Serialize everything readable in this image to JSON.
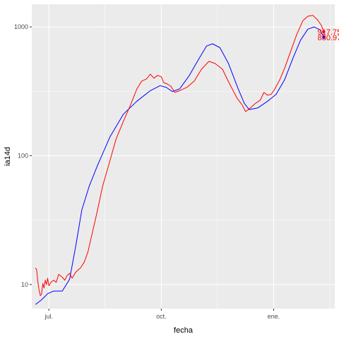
{
  "chart_data": {
    "type": "line",
    "xlabel": "fecha",
    "ylabel": "ia14d",
    "y_scale": "log10",
    "ylim": [
      6.5,
      1500
    ],
    "xlim": [
      "2020-06-17",
      "2021-02-20"
    ],
    "grid": true,
    "legend": "none",
    "x_ticks": [
      {
        "date": "2020-07-01",
        "label": "jul."
      },
      {
        "date": "2020-10-01",
        "label": "oct."
      },
      {
        "date": "2021-01-01",
        "label": "ene."
      }
    ],
    "y_ticks": [
      {
        "value": 10,
        "label": "10"
      },
      {
        "value": 100,
        "label": "100"
      },
      {
        "value": 1000,
        "label": "1000"
      }
    ],
    "series": [
      {
        "color": "#0000ff",
        "end_label": "830.97",
        "points": [
          [
            "2020-06-20",
            7.0
          ],
          [
            "2020-06-25",
            7.6
          ],
          [
            "2020-06-30",
            8.5
          ],
          [
            "2020-07-05",
            8.9
          ],
          [
            "2020-07-12",
            8.9
          ],
          [
            "2020-07-18",
            11.0
          ],
          [
            "2020-07-23",
            20.0
          ],
          [
            "2020-07-28",
            38.0
          ],
          [
            "2020-08-03",
            58.0
          ],
          [
            "2020-08-10",
            85.0
          ],
          [
            "2020-08-20",
            140.0
          ],
          [
            "2020-08-31",
            210.0
          ],
          [
            "2020-09-11",
            265.0
          ],
          [
            "2020-09-22",
            320.0
          ],
          [
            "2020-09-30",
            350.0
          ],
          [
            "2020-10-05",
            340.0
          ],
          [
            "2020-10-10",
            315.0
          ],
          [
            "2020-10-16",
            330.0
          ],
          [
            "2020-10-24",
            420.0
          ],
          [
            "2020-11-01",
            570.0
          ],
          [
            "2020-11-07",
            710.0
          ],
          [
            "2020-11-12",
            740.0
          ],
          [
            "2020-11-18",
            690.0
          ],
          [
            "2020-11-25",
            520.0
          ],
          [
            "2020-12-03",
            330.0
          ],
          [
            "2020-12-08",
            255.0
          ],
          [
            "2020-12-12",
            228.0
          ],
          [
            "2020-12-19",
            235.0
          ],
          [
            "2020-12-27",
            265.0
          ],
          [
            "2021-01-03",
            300.0
          ],
          [
            "2021-01-10",
            390.0
          ],
          [
            "2021-01-17",
            580.0
          ],
          [
            "2021-01-23",
            790.0
          ],
          [
            "2021-01-29",
            960.0
          ],
          [
            "2021-02-03",
            1000.0
          ],
          [
            "2021-02-08",
            950.0
          ],
          [
            "2021-02-11",
            831.0
          ]
        ]
      },
      {
        "color": "#ff0000",
        "end_label": "917.75",
        "points": [
          [
            "2020-06-20",
            13.5
          ],
          [
            "2020-06-21",
            13.0
          ],
          [
            "2020-06-22",
            10.5
          ],
          [
            "2020-06-23",
            9.0
          ],
          [
            "2020-06-24",
            8.2
          ],
          [
            "2020-06-25",
            8.4
          ],
          [
            "2020-06-26",
            10.2
          ],
          [
            "2020-06-27",
            9.4
          ],
          [
            "2020-06-28",
            10.8
          ],
          [
            "2020-06-29",
            10.0
          ],
          [
            "2020-06-30",
            11.2
          ],
          [
            "2020-07-01",
            9.8
          ],
          [
            "2020-07-03",
            10.5
          ],
          [
            "2020-07-05",
            10.8
          ],
          [
            "2020-07-07",
            10.4
          ],
          [
            "2020-07-09",
            12.0
          ],
          [
            "2020-07-12",
            11.4
          ],
          [
            "2020-07-14",
            10.8
          ],
          [
            "2020-07-16",
            11.8
          ],
          [
            "2020-07-18",
            12.2
          ],
          [
            "2020-07-20",
            11.2
          ],
          [
            "2020-07-23",
            12.5
          ],
          [
            "2020-07-27",
            13.5
          ],
          [
            "2020-07-30",
            15.0
          ],
          [
            "2020-08-02",
            18.0
          ],
          [
            "2020-08-05",
            24.0
          ],
          [
            "2020-08-09",
            35.0
          ],
          [
            "2020-08-14",
            58.0
          ],
          [
            "2020-08-19",
            85.0
          ],
          [
            "2020-08-25",
            135.0
          ],
          [
            "2020-08-31",
            185.0
          ],
          [
            "2020-09-06",
            250.0
          ],
          [
            "2020-09-11",
            330.0
          ],
          [
            "2020-09-15",
            380.0
          ],
          [
            "2020-09-19",
            395.0
          ],
          [
            "2020-09-22",
            430.0
          ],
          [
            "2020-09-25",
            400.0
          ],
          [
            "2020-09-28",
            420.0
          ],
          [
            "2020-10-01",
            410.0
          ],
          [
            "2020-10-03",
            370.0
          ],
          [
            "2020-10-06",
            360.0
          ],
          [
            "2020-10-09",
            345.0
          ],
          [
            "2020-10-12",
            310.0
          ],
          [
            "2020-10-16",
            320.0
          ],
          [
            "2020-10-22",
            340.0
          ],
          [
            "2020-10-28",
            380.0
          ],
          [
            "2020-11-03",
            470.0
          ],
          [
            "2020-11-09",
            540.0
          ],
          [
            "2020-11-14",
            520.0
          ],
          [
            "2020-11-20",
            470.0
          ],
          [
            "2020-11-26",
            360.0
          ],
          [
            "2020-12-02",
            280.0
          ],
          [
            "2020-12-06",
            250.0
          ],
          [
            "2020-12-09",
            220.0
          ],
          [
            "2020-12-13",
            235.0
          ],
          [
            "2020-12-17",
            255.0
          ],
          [
            "2020-12-21",
            270.0
          ],
          [
            "2020-12-24",
            310.0
          ],
          [
            "2020-12-27",
            295.0
          ],
          [
            "2020-12-30",
            300.0
          ],
          [
            "2021-01-02",
            330.0
          ],
          [
            "2021-01-06",
            390.0
          ],
          [
            "2021-01-10",
            480.0
          ],
          [
            "2021-01-15",
            650.0
          ],
          [
            "2021-01-20",
            880.0
          ],
          [
            "2021-01-25",
            1120.0
          ],
          [
            "2021-01-29",
            1210.0
          ],
          [
            "2021-02-02",
            1230.0
          ],
          [
            "2021-02-06",
            1130.0
          ],
          [
            "2021-02-09",
            1030.0
          ],
          [
            "2021-02-11",
            917.75
          ]
        ]
      }
    ]
  }
}
